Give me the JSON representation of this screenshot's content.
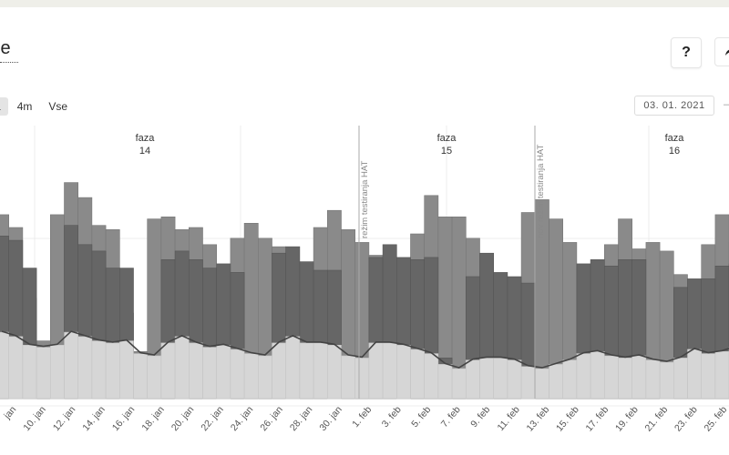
{
  "header": {
    "title_fragment": "je",
    "help_label": "?"
  },
  "range_tabs": [
    {
      "label": "a",
      "active": true
    },
    {
      "label": "4m",
      "active": false
    },
    {
      "label": "Vse",
      "active": false
    }
  ],
  "date_value": "03. 01. 2021",
  "chart_data": {
    "type": "bar+line",
    "x_labels": [
      "jan",
      "10. jan",
      "12. jan",
      "14. jan",
      "16. jan",
      "18. jan",
      "20. jan",
      "22. jan",
      "24. jan",
      "26. jan",
      "28. jan",
      "30. jan",
      "1. feb",
      "3. feb",
      "5. feb",
      "7. feb",
      "9. feb",
      "11. feb",
      "13. feb",
      "15. feb",
      "17. feb",
      "19. feb",
      "21. feb",
      "23. feb",
      "25. feb"
    ],
    "phases": [
      {
        "label": "faza",
        "number": "14"
      },
      {
        "label": "faza",
        "number": "15"
      },
      {
        "label": "faza",
        "number": "16"
      }
    ],
    "annotations": [
      "režim testiranja HAT",
      "nov režim testiranja HAT"
    ],
    "series": [
      {
        "values": [
          86,
          80,
          47,
          27,
          86,
          101,
          94,
          81,
          79,
          40,
          22,
          84,
          85,
          79,
          80,
          72,
          33,
          75,
          82,
          75,
          71,
          42,
          30,
          80,
          88,
          79,
          73,
          67,
          38,
          22,
          77,
          95,
          85,
          85,
          75,
          41,
          27,
          27,
          87,
          93,
          84,
          73,
          25,
          20,
          72,
          84,
          70,
          73,
          69,
          58,
          23,
          72,
          86,
          73,
          69,
          69
        ]
      },
      {
        "values": [
          76,
          74,
          61,
          24,
          20,
          81,
          72,
          69,
          61,
          61,
          18,
          14,
          65,
          69,
          65,
          61,
          63,
          59,
          20,
          18,
          68,
          71,
          64,
          60,
          60,
          13,
          14,
          66,
          72,
          66,
          65,
          66,
          19,
          9,
          57,
          68,
          59,
          57,
          54,
          14,
          6,
          7,
          63,
          65,
          62,
          65,
          65,
          17,
          14,
          52,
          56,
          56,
          62,
          63,
          62,
          15,
          10,
          59,
          65,
          62,
          63,
          66
        ]
      },
      {
        "values": [
          31,
          29,
          25,
          24,
          25,
          31,
          29,
          27,
          26,
          27,
          21,
          20,
          26,
          29,
          26,
          24,
          25,
          23,
          21,
          20,
          26,
          29,
          26,
          26,
          25,
          20,
          19,
          26,
          26,
          25,
          23,
          21,
          16,
          14,
          18,
          19,
          19,
          18,
          15,
          14,
          16,
          18,
          21,
          22,
          20,
          19,
          20,
          18,
          17,
          19,
          23,
          21,
          22,
          24,
          24,
          21,
          18,
          21,
          23,
          23,
          24,
          24
        ]
      }
    ]
  }
}
